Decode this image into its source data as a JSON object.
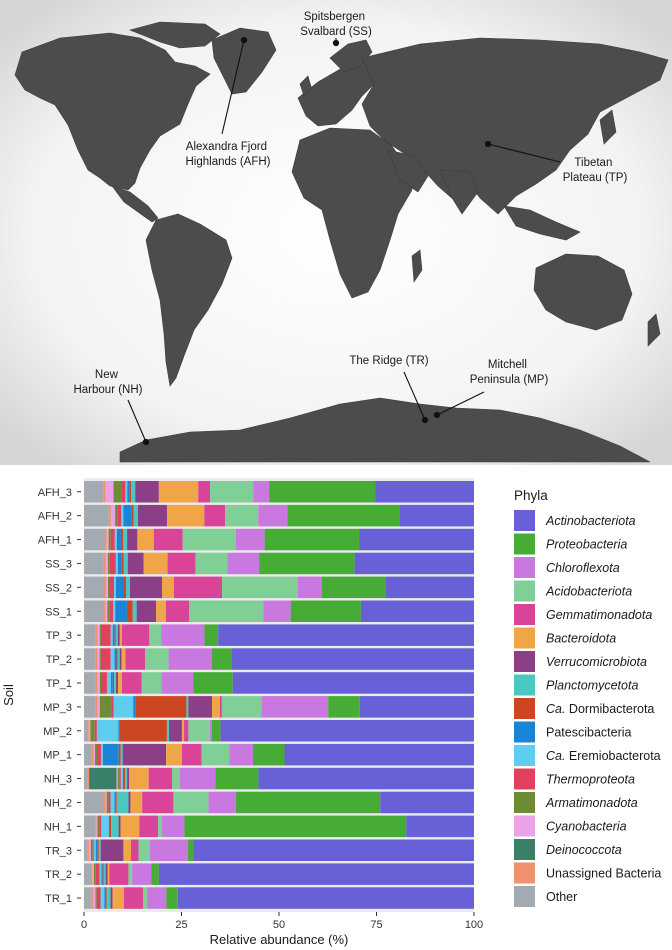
{
  "map": {
    "sites": [
      {
        "id": "SS",
        "label_lines": [
          "Spitsbergen",
          "Svalbard (SS)"
        ]
      },
      {
        "id": "AFH",
        "label_lines": [
          "Alexandra Fjord",
          "Highlands (AFH)"
        ]
      },
      {
        "id": "TP",
        "label_lines": [
          "Tibetan",
          "Plateau (TP)"
        ]
      },
      {
        "id": "NH",
        "label_lines": [
          "New",
          "Harbour (NH)"
        ]
      },
      {
        "id": "TR",
        "label_lines": [
          "The Ridge (TR)"
        ]
      },
      {
        "id": "MP",
        "label_lines": [
          "Mitchell",
          "Peninsula (MP)"
        ]
      }
    ]
  },
  "chart_data": {
    "type": "bar",
    "orientation": "horizontal",
    "stacked": true,
    "xlabel": "Relative abundance (%)",
    "ylabel": "Soil",
    "xlim": [
      0,
      100
    ],
    "xticks": [
      0,
      25,
      50,
      75,
      100
    ],
    "legend_title": "Phyla",
    "legend_position": "right",
    "categories": [
      "AFH_3",
      "AFH_2",
      "AFH_1",
      "SS_3",
      "SS_2",
      "SS_1",
      "TP_3",
      "TP_2",
      "TP_1",
      "MP_3",
      "MP_2",
      "MP_1",
      "NH_3",
      "NH_2",
      "NH_1",
      "TR_3",
      "TR_2",
      "TR_1"
    ],
    "series": [
      {
        "name": "Other",
        "italic": false,
        "color": "#a3aab2",
        "values": [
          5,
          6,
          5,
          5,
          5,
          5,
          3,
          3,
          3,
          3,
          1,
          2,
          1,
          5,
          3,
          1,
          2,
          2
        ]
      },
      {
        "name": "Unassigned Bacteria",
        "italic": false,
        "color": "#f2916d",
        "values": [
          0.5,
          0.5,
          0.5,
          0.5,
          0.5,
          0.5,
          0.5,
          0.5,
          0.5,
          0.5,
          0.3,
          0.5,
          0.3,
          0.5,
          0.3,
          0.3,
          0.3,
          0.5
        ]
      },
      {
        "name": "Deinococcota",
        "italic": true,
        "color": "#3a8069",
        "values": [
          0,
          0,
          0,
          0,
          0,
          0,
          0,
          0,
          0,
          0,
          0,
          0,
          7,
          0,
          0,
          0,
          0,
          0
        ]
      },
      {
        "name": "Cyanobacteria",
        "italic": true,
        "color": "#eaa3e8",
        "values": [
          2,
          1,
          0.5,
          0.5,
          0.5,
          0.5,
          0.5,
          0.5,
          0.5,
          0.5,
          0.2,
          0.3,
          0.3,
          0.3,
          0.3,
          0.5,
          0.3,
          0.5
        ]
      },
      {
        "name": "Armatimonadota",
        "italic": true,
        "color": "#6e8c36",
        "values": [
          2,
          0.5,
          0.5,
          0.5,
          0.5,
          0.5,
          0.3,
          0.3,
          0.3,
          3,
          1,
          0.5,
          0.5,
          0.5,
          0.5,
          0.5,
          0.5,
          0.3
        ]
      },
      {
        "name": "Thermoproteota",
        "italic": true,
        "color": "#e2405f",
        "values": [
          1,
          1,
          1,
          1.5,
          1,
          1,
          2.5,
          2.5,
          1.5,
          0.5,
          0.5,
          1,
          0.3,
          0.5,
          0.5,
          0.3,
          1,
          1
        ]
      },
      {
        "name": "Ca. Eremiobacterota",
        "italic": false,
        "color": "#5ecdf0",
        "values": [
          0.5,
          0.5,
          0.5,
          0.5,
          0.5,
          0.5,
          0.5,
          1,
          1,
          5,
          5,
          0.5,
          0.5,
          1,
          2,
          0.5,
          0.5,
          1
        ]
      },
      {
        "name": "Patescibacteria",
        "italic": false,
        "color": "#1a85d6",
        "values": [
          0.5,
          2,
          1,
          1,
          2,
          3,
          0.5,
          0.5,
          0.5,
          0.5,
          0.3,
          4,
          0.3,
          0.3,
          0.3,
          0.5,
          0.3,
          0.3
        ]
      },
      {
        "name": "Ca. Dormibacterota",
        "italic": false,
        "color": "#cc4622",
        "values": [
          0.5,
          0.5,
          0.5,
          0.5,
          0.5,
          1.5,
          0.3,
          0.3,
          0.3,
          13,
          11,
          0.5,
          0.3,
          0.3,
          0.3,
          0.3,
          0.3,
          0.3
        ]
      },
      {
        "name": "Planctomycetota",
        "italic": true,
        "color": "#4cc6c0",
        "values": [
          1,
          1,
          1,
          1,
          1,
          1,
          0.5,
          0.5,
          0.5,
          0.5,
          0.5,
          0.5,
          0.5,
          3,
          2,
          0.5,
          0.5,
          1
        ]
      },
      {
        "name": "Verrucomicrobiota",
        "italic": true,
        "color": "#8a3f87",
        "values": [
          6,
          7,
          2.5,
          4,
          8,
          5,
          0.5,
          0.5,
          0.5,
          6,
          3,
          11,
          0.5,
          0.5,
          0.5,
          6,
          0.5,
          0.5
        ]
      },
      {
        "name": "Bacteroidota",
        "italic": true,
        "color": "#f0a548",
        "values": [
          10,
          9,
          4,
          6,
          3,
          2.5,
          0.5,
          1,
          1,
          2,
          0.5,
          4,
          5,
          3,
          5,
          2,
          0.5,
          3
        ]
      },
      {
        "name": "Gemmatimonadota",
        "italic": true,
        "color": "#d94398",
        "values": [
          3,
          5,
          7,
          7,
          12,
          6,
          7,
          5,
          5,
          0.5,
          1,
          5,
          6,
          8,
          5,
          2,
          5,
          5
        ]
      },
      {
        "name": "Acidobacteriota",
        "italic": true,
        "color": "#7fcf97",
        "values": [
          11,
          8,
          13,
          8,
          19,
          19,
          3,
          6,
          5,
          10,
          5,
          7,
          2,
          9,
          1,
          3,
          1,
          1
        ]
      },
      {
        "name": "Chloroflexota",
        "italic": true,
        "color": "#c978df",
        "values": [
          4,
          7,
          7,
          8,
          6,
          7,
          11,
          11,
          8,
          17,
          0.5,
          6,
          9,
          7,
          6,
          10,
          5,
          5
        ]
      },
      {
        "name": "Proteobacteria",
        "italic": true,
        "color": "#46ac36",
        "values": [
          27,
          27,
          23,
          24,
          16,
          18,
          3.5,
          5,
          10,
          8,
          2,
          8,
          11,
          37,
          59,
          1.5,
          2,
          3
        ]
      },
      {
        "name": "Actinobacteriota",
        "italic": true,
        "color": "#6760d6",
        "values": [
          25,
          18,
          28,
          30,
          22,
          29,
          65,
          62,
          61,
          29,
          59,
          48,
          55,
          24,
          18,
          74,
          83,
          77
        ]
      }
    ],
    "legend_order": [
      "Actinobacteriota",
      "Proteobacteria",
      "Chloroflexota",
      "Acidobacteriota",
      "Gemmatimonadota",
      "Bacteroidota",
      "Verrucomicrobiota",
      "Planctomycetota",
      "Ca. Dormibacterota",
      "Patescibacteria",
      "Ca. Eremiobacterota",
      "Thermoproteota",
      "Armatimonadota",
      "Cyanobacteria",
      "Deinococcota",
      "Unassigned Bacteria",
      "Other"
    ]
  }
}
